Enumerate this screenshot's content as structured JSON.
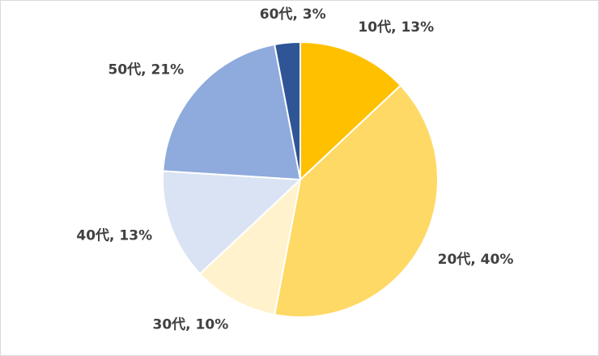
{
  "chart_data": {
    "type": "pie",
    "labels": [
      "10代, 13%",
      "20代, 40%",
      "30代, 10%",
      "40代, 13%",
      "50代, 21%",
      "60代, 3%"
    ],
    "values": [
      13,
      40,
      10,
      13,
      21,
      3
    ],
    "colors": [
      "#FFC000",
      "#FFD966",
      "#FFF2CC",
      "#DAE3F3",
      "#8FAADC",
      "#2F5597"
    ]
  }
}
